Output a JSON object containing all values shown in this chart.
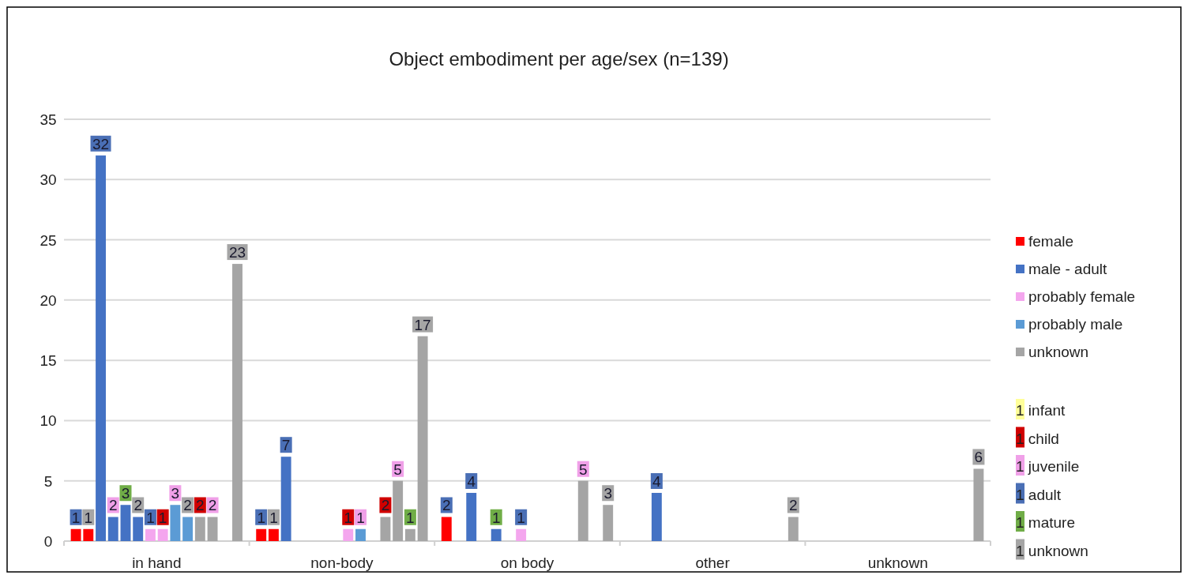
{
  "chart_data": {
    "type": "bar",
    "title": "Object embodiment per age/sex (n=139)",
    "categories": [
      "in hand",
      "non-body",
      "on body",
      "other",
      "unknown"
    ],
    "series": [
      {
        "name": "female",
        "color": "#ff0000",
        "values": [
          1,
          1,
          2,
          null,
          null
        ]
      },
      {
        "color": "#ff0000",
        "values": [
          1,
          1,
          null,
          null,
          null
        ]
      },
      {
        "name": "male - adult",
        "color": "#4472c4",
        "values": [
          32,
          7,
          4,
          4,
          null
        ]
      },
      {
        "color": "#4472c4",
        "values": [
          2,
          null,
          null,
          null,
          null
        ]
      },
      {
        "color": "#4472c4",
        "values": [
          3,
          null,
          1,
          null,
          null
        ]
      },
      {
        "color": "#4472c4",
        "values": [
          2,
          null,
          null,
          null,
          null
        ]
      },
      {
        "name": "probably female",
        "color": "#f4a6ee",
        "values": [
          1,
          null,
          1,
          null,
          null
        ]
      },
      {
        "color": "#f4a6ee",
        "values": [
          1,
          1,
          null,
          null,
          null
        ]
      },
      {
        "name": "probably male",
        "color": "#5b9bd5",
        "values": [
          3,
          1,
          null,
          null,
          null
        ]
      },
      {
        "color": "#5b9bd5",
        "values": [
          2,
          null,
          null,
          null,
          null
        ]
      },
      {
        "name": "unknown",
        "color": "#a5a5a5",
        "values": [
          2,
          2,
          null,
          null,
          null
        ]
      },
      {
        "color": "#a5a5a5",
        "values": [
          2,
          5,
          5,
          null,
          null
        ]
      },
      {
        "color": "#a5a5a5",
        "values": [
          null,
          1,
          null,
          null,
          null
        ]
      },
      {
        "color": "#a5a5a5",
        "values": [
          23,
          17,
          3,
          2,
          6
        ]
      }
    ],
    "ylim": [
      0,
      35
    ],
    "yticks": [
      0,
      5,
      10,
      15,
      20,
      25,
      30,
      35
    ],
    "grid": "y",
    "legend": "right",
    "data_labels": true,
    "annotations": [
      "1 infant",
      "1 child",
      "1 juvenile",
      "1 adult",
      "1 mature",
      "1 unknown"
    ]
  }
}
